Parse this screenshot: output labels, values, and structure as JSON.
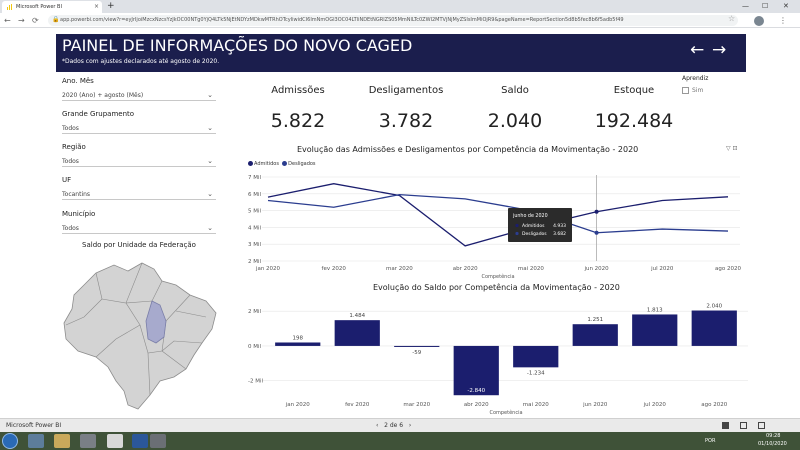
{
  "browser": {
    "tab_title": "Microsoft Power BI",
    "tab_close": "×",
    "new_tab": "+",
    "url": "app.powerbi.com/view?r=eyJrIjoiMzcxNzcsYzJkOC00NTg0YjQ4LTk5NjEtNDYzMDkwMTRhOTcyIiwidCI6ImNmOGI3OC04LTliNDEtNGRlZS05MmNlLTc0ZWI2MTVjNjMyZSIsImMiOjR9&pageName=ReportSection5d8b5fec8b6f5adb5f49",
    "nav_back": "←",
    "nav_forward": "→",
    "nav_reload": "⟳",
    "win_min": "—",
    "win_max": "☐",
    "win_close": "✕",
    "lock_icon": "🔒",
    "star_icon": "☆",
    "menu_icon": "⋮"
  },
  "header": {
    "title": "PAINEL DE INFORMAÇÕES DO NOVO CAGED",
    "subtitle": "*Dados com ajustes declarados até agosto de 2020.",
    "prev_arrow": "←",
    "next_arrow": "→"
  },
  "slicers": [
    {
      "label": "Ano. Mês",
      "value": "2020 (Ano) + agosto (Mês)"
    },
    {
      "label": "Grande Grupamento",
      "value": "Todos"
    },
    {
      "label": "Região",
      "value": "Todos"
    },
    {
      "label": "UF",
      "value": "Tocantins"
    },
    {
      "label": "Município",
      "value": "Todos"
    }
  ],
  "map": {
    "title": "Saldo por Unidade da Federação",
    "highlight_color": "#a7aacd",
    "base_color": "#d3d3d3"
  },
  "kpis": [
    {
      "label": "Admissões",
      "value": "5.822"
    },
    {
      "label": "Desligamentos",
      "value": "3.782"
    },
    {
      "label": "Saldo",
      "value": "2.040"
    },
    {
      "label": "Estoque",
      "value": "192.484"
    }
  ],
  "aprendiz": {
    "label": "Aprendiz",
    "option": "Sim"
  },
  "line_chart_title": "Evolução das Admissões e Desligamentos por Competência da Movimentação - 2020",
  "bar_chart_title": "Evolução do Saldo por Competência da Movimentação - 2020",
  "chart_icons": "▽  ⊡",
  "chart_data": [
    {
      "type": "line",
      "title": "Evolução das Admissões e Desligamentos por Competência da Movimentação - 2020",
      "xlabel": "Competência",
      "ylabel": "",
      "categories": [
        "jan 2020",
        "fev 2020",
        "mar 2020",
        "abr 2020",
        "mai 2020",
        "jun 2020",
        "jul 2020",
        "ago 2020"
      ],
      "y_ticks": [
        "2 Mil",
        "3 Mil",
        "4 Mil",
        "5 Mil",
        "6 Mil",
        "7 Mil"
      ],
      "ylim": [
        2000,
        7000
      ],
      "legend_position": "top-left",
      "series": [
        {
          "name": "Admitidos",
          "color": "#1b1e6e",
          "values": [
            5800,
            6600,
            5900,
            2900,
            4000,
            4930,
            5600,
            5822
          ]
        },
        {
          "name": "Desligados",
          "color": "#2b3d8f",
          "values": [
            5600,
            5200,
            5950,
            5700,
            5000,
            3682,
            3900,
            3782
          ]
        }
      ],
      "tooltip": {
        "title": "junho de 2020",
        "rows": [
          [
            "Admitidos",
            "4.933"
          ],
          [
            "Desligados",
            "3.682"
          ]
        ]
      },
      "crosshair_at": "jun 2020"
    },
    {
      "type": "bar",
      "title": "Evolução do Saldo por Competência da Movimentação - 2020",
      "xlabel": "Competência",
      "ylabel": "",
      "categories": [
        "jan 2020",
        "fev 2020",
        "mar 2020",
        "abr 2020",
        "mai 2020",
        "jun 2020",
        "jul 2020",
        "ago 2020"
      ],
      "values": [
        198,
        1484,
        -59,
        -2840,
        -1234,
        1251,
        1813,
        2040
      ],
      "data_labels": [
        "198",
        "1.484",
        "-59",
        "-2.840",
        "-1.234",
        "1.251",
        "1.813",
        "2.040"
      ],
      "y_ticks": [
        "-2 Mil",
        "0 Mil",
        "2 Mil"
      ],
      "y_tick_values": [
        -2000,
        0,
        2000
      ],
      "ylim": [
        -3000,
        2300
      ],
      "color": "#1b1e6e"
    }
  ],
  "pbi_bar": {
    "app_name": "Microsoft Power BI",
    "pager": "2 de 6",
    "prev": "‹",
    "next": "›"
  },
  "taskbar": {
    "time": "09:28",
    "date": "01/10/2020",
    "lang": "POR"
  }
}
